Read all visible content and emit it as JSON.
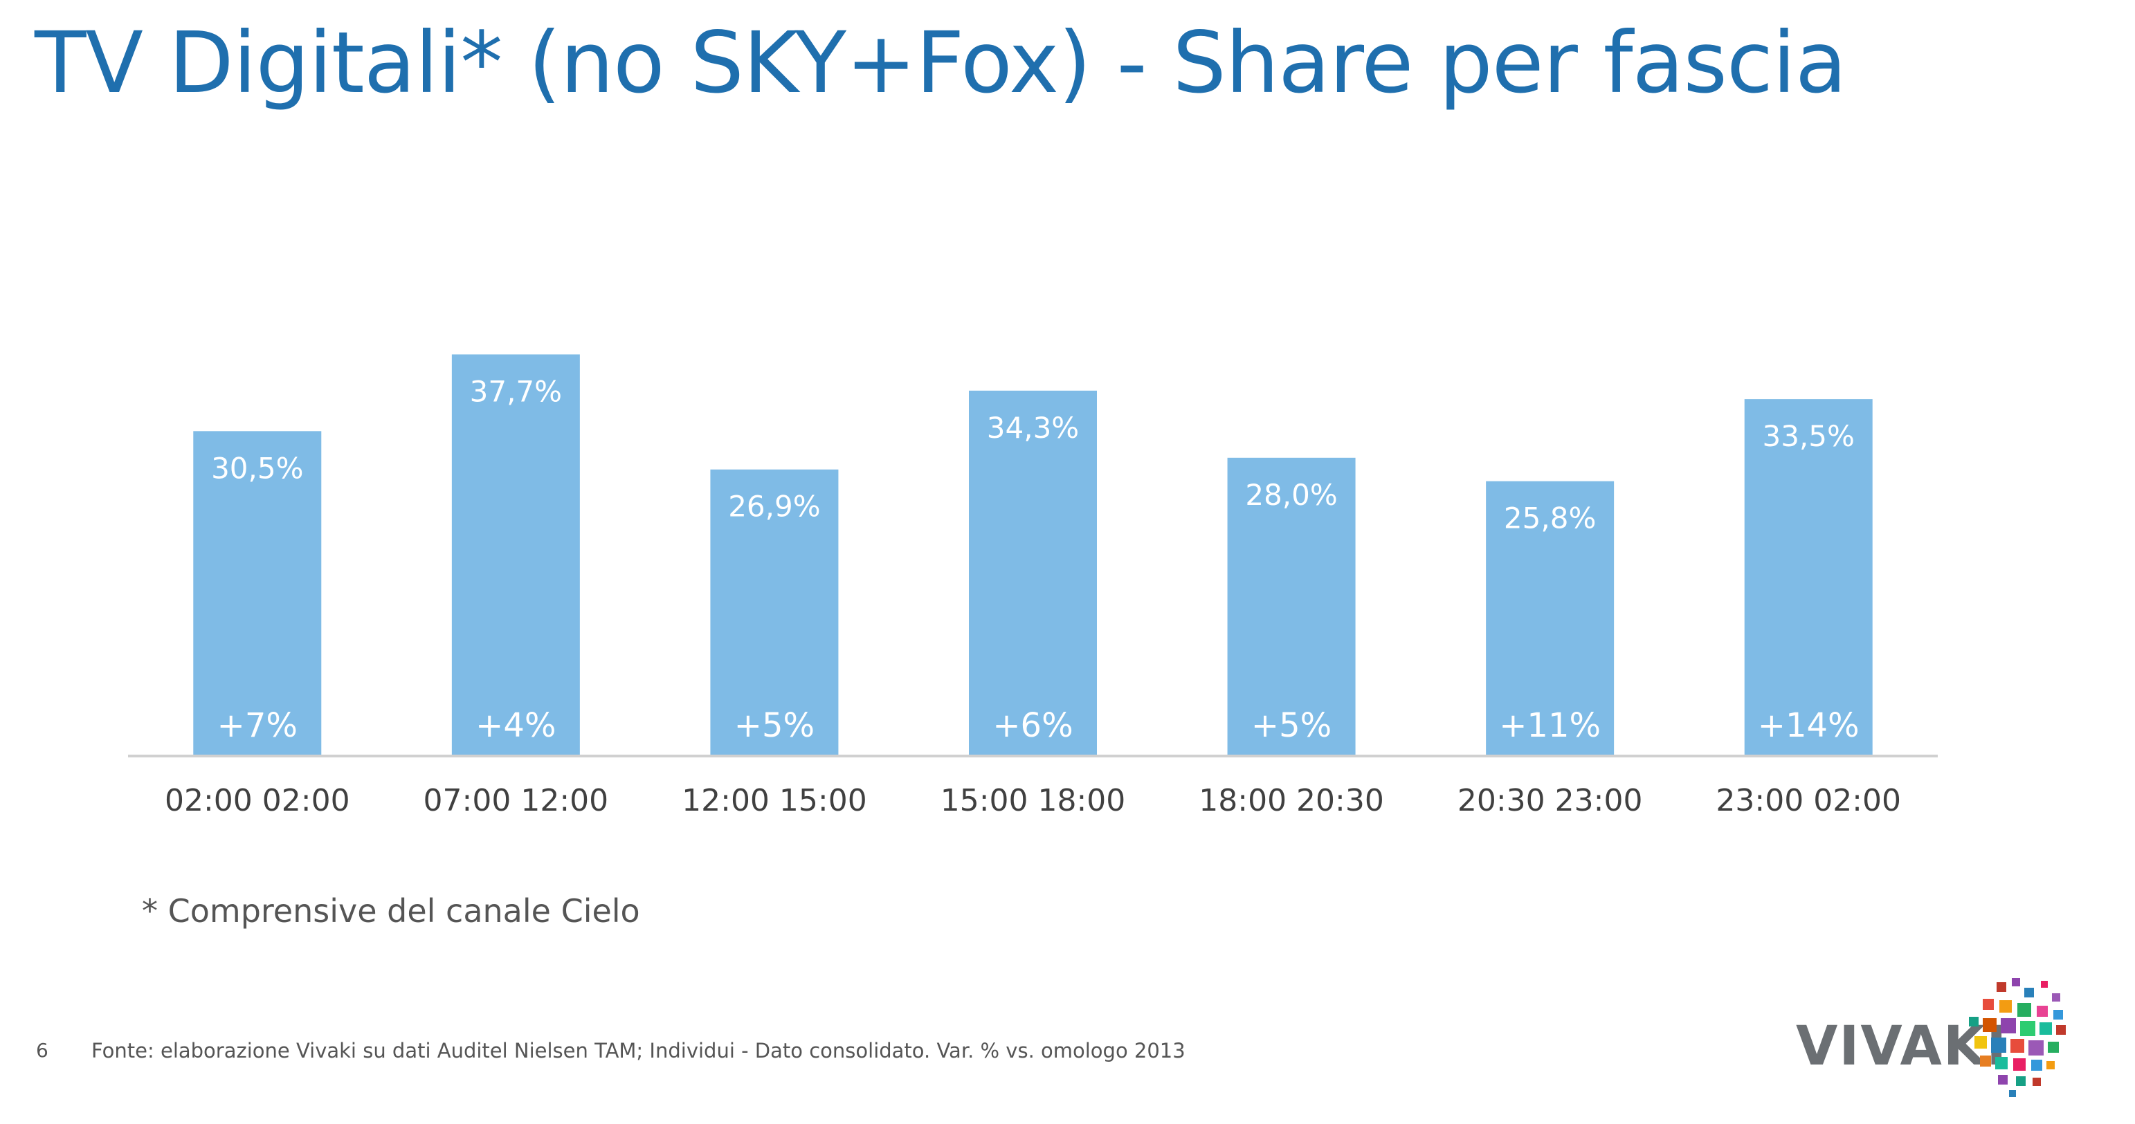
{
  "page": {
    "title": "TV Digitali* (no SKY+Fox) - Share per fascia",
    "footnote": "* Comprensive del canale Cielo",
    "page_number": "6",
    "source": "Fonte: elaborazione Vivaki su dati Auditel Nielsen TAM; Individui - Dato consolidato. Var. % vs. omologo 2013",
    "logo_text": "VIVAKI"
  },
  "colors": {
    "bar": "#7fbbe6",
    "title": "#1f6fae",
    "axis": "#d0d0d0",
    "label_on_bar": "#ffffff",
    "tick_label": "#404040"
  },
  "chart_data": {
    "type": "bar",
    "title": "TV Digitali* (no SKY+Fox) - Share per fascia",
    "xlabel": "",
    "ylabel": "",
    "ylim": [
      0,
      40
    ],
    "grid": false,
    "legend": "none",
    "categories": [
      "02:00 02:00",
      "07:00 12:00",
      "12:00 15:00",
      "15:00 18:00",
      "18:00 20:30",
      "20:30 23:00",
      "23:00 02:00"
    ],
    "values": [
      30.5,
      37.7,
      26.9,
      34.3,
      28.0,
      25.8,
      33.5
    ],
    "value_labels": [
      "30,5%",
      "37,7%",
      "26,9%",
      "34,3%",
      "28,0%",
      "25,8%",
      "33,5%"
    ],
    "variation_labels": [
      "+7%",
      "+4%",
      "+5%",
      "+6%",
      "+5%",
      "+11%",
      "+14%"
    ]
  }
}
